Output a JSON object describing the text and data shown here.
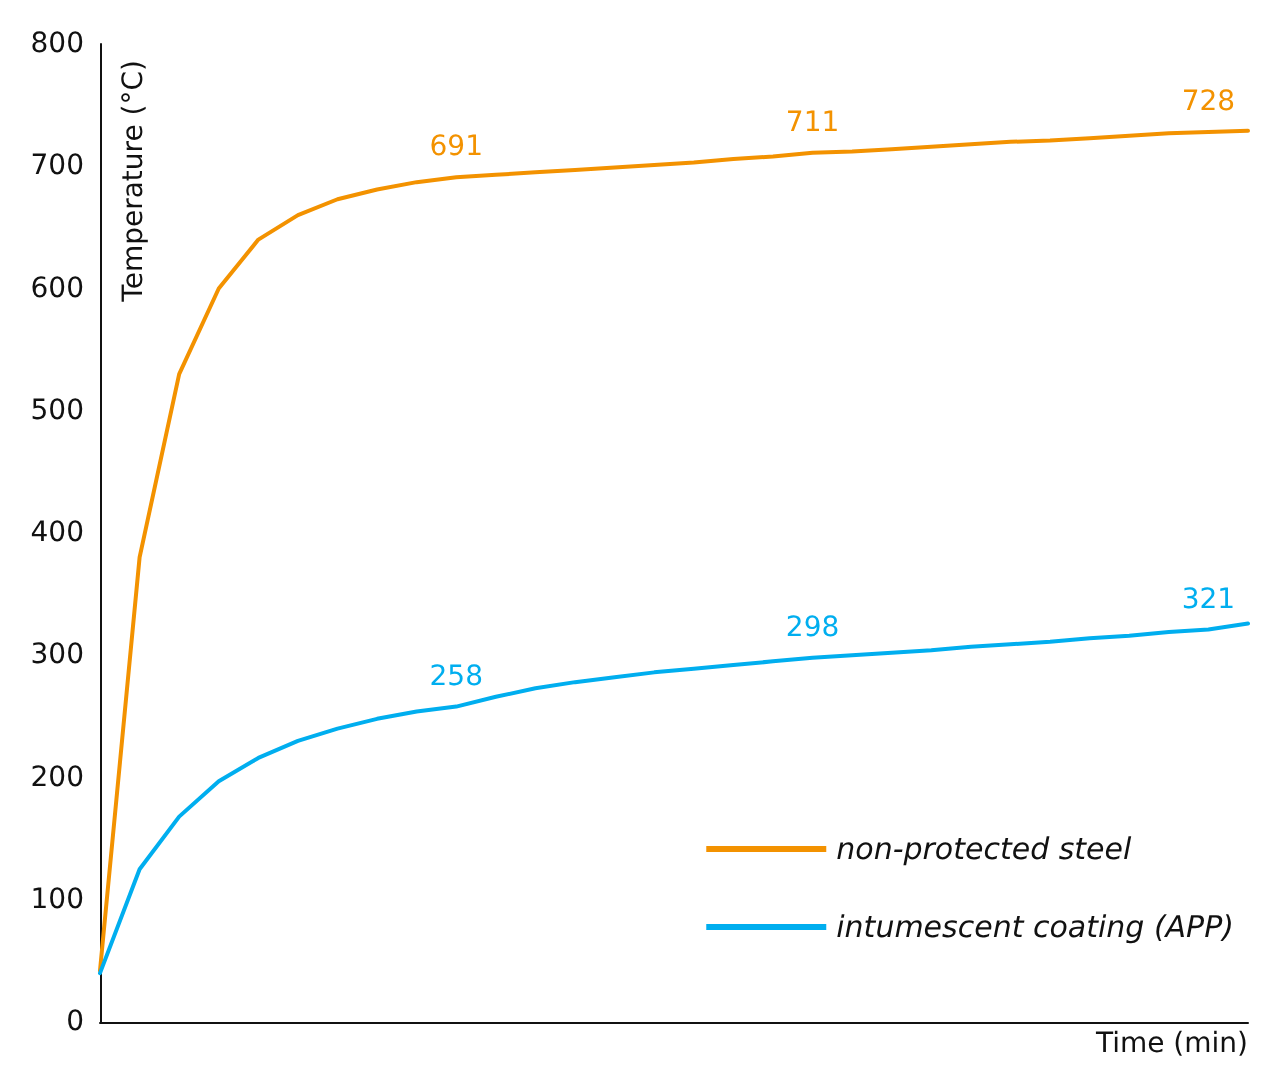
{
  "chart_data": {
    "type": "line",
    "xlabel": "Time (min)",
    "ylabel": "Temperature (°C)",
    "categories": [
      null,
      null,
      null,
      null,
      null,
      null,
      null,
      null,
      null,
      null,
      null,
      null,
      null,
      null,
      null,
      null,
      null,
      null,
      null,
      null,
      null,
      null,
      null,
      null,
      null,
      null,
      null,
      null,
      null,
      null
    ],
    "ylim": [
      0,
      800
    ],
    "yticks": [
      0,
      100,
      200,
      300,
      400,
      500,
      600,
      700,
      800
    ],
    "grid": false,
    "legend": "bottom right",
    "marker": "none",
    "line_style": "solid",
    "series": [
      {
        "name": "non-protected steel",
        "color": "#f39200",
        "values": [
          42,
          380,
          530,
          600,
          640,
          660,
          673,
          681,
          687,
          691,
          693,
          695,
          697,
          699,
          701,
          703,
          706,
          708,
          711,
          712,
          714,
          716,
          718,
          720,
          721,
          723,
          725,
          727,
          728,
          729
        ],
        "value_labels": [
          null,
          null,
          null,
          null,
          null,
          null,
          null,
          null,
          null,
          "691",
          null,
          null,
          null,
          null,
          null,
          null,
          null,
          null,
          "711",
          null,
          null,
          null,
          null,
          null,
          null,
          null,
          null,
          null,
          "728",
          null
        ]
      },
      {
        "name": "intumescent coating (APP)",
        "color": "#00aeef",
        "values": [
          40,
          125,
          168,
          197,
          216,
          230,
          240,
          248,
          254,
          258,
          266,
          273,
          278,
          282,
          286,
          289,
          292,
          295,
          298,
          300,
          302,
          304,
          307,
          309,
          311,
          314,
          316,
          319,
          321,
          326
        ],
        "value_labels": [
          null,
          null,
          null,
          null,
          null,
          null,
          null,
          null,
          null,
          "258",
          null,
          null,
          null,
          null,
          null,
          null,
          null,
          null,
          "298",
          null,
          null,
          null,
          null,
          null,
          null,
          null,
          null,
          null,
          "321",
          null
        ]
      }
    ]
  }
}
